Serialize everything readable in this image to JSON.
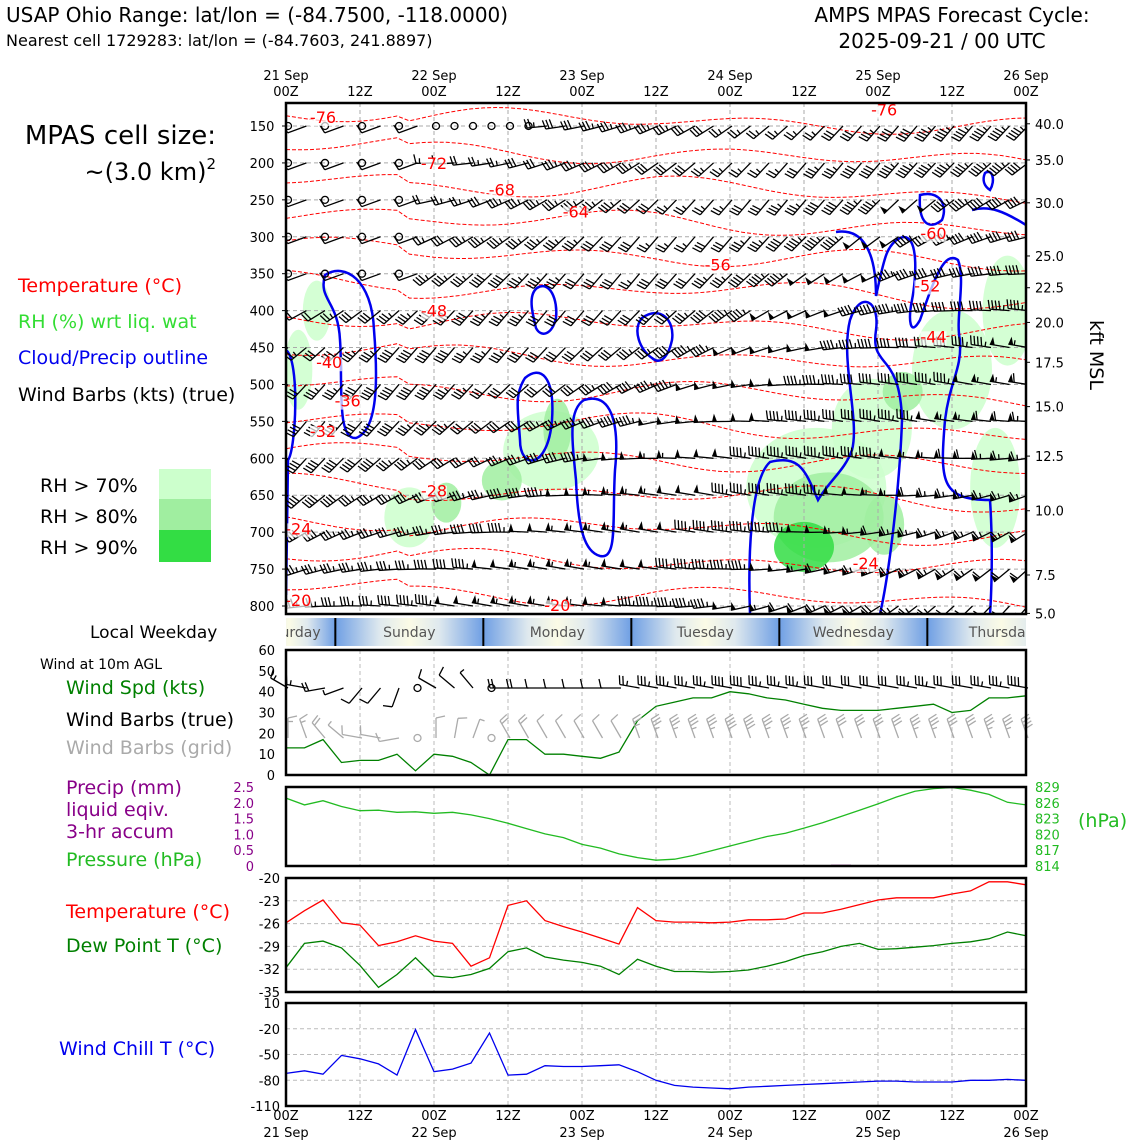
{
  "header": {
    "title_left": "USAP Ohio Range: lat/lon = (-84.7500, -118.0000)",
    "subtitle_left": "Nearest cell 1729283: lat/lon = (-84.7603, 241.8897)",
    "title_right_1": "AMPS MPAS Forecast Cycle:",
    "title_right_2": "2025-09-21 / 00 UTC"
  },
  "labels": {
    "cell_size_1": "MPAS cell size:",
    "cell_size_2": "~(3.0 km)",
    "cell_size_sup": "2",
    "temperature": "Temperature (°C)",
    "rh": "RH (%) wrt liq. wat",
    "cloud": "Cloud/Precip outline",
    "wind_barbs": "Wind Barbs (kts) (true)",
    "rh70": "RH > 70%",
    "rh80": "RH > 80%",
    "rh90": "RH > 90%",
    "kft_axis": "kft MSL",
    "local_weekday": "Local Weekday",
    "wind_10m": "Wind at 10m AGL",
    "wind_spd": "Wind Spd (kts)",
    "wind_barbs_true": "Wind Barbs (true)",
    "wind_barbs_grid": "Wind Barbs (grid)",
    "precip_1": "Precip (mm)",
    "precip_2": "liquid eqiv.",
    "precip_3": "3-hr accum",
    "pressure": "Pressure (hPa)",
    "hpa_right": "(hPa)",
    "temp2": "Temperature (°C)",
    "dewpoint": "Dew Point T (°C)",
    "windchill": "Wind Chill T (°C)"
  },
  "colors": {
    "temperature": "#ff0000",
    "rh": "#33dd33",
    "cloud": "#0000ee",
    "barbs": "#000000",
    "barbs_grid": "#aaaaaa",
    "precip": "#880088",
    "pressure": "#22bb22",
    "wind_speed": "#008000",
    "dewpoint": "#008000",
    "windchill": "#0000ee",
    "rh70": "#ccffcc",
    "rh80": "#a0eea0",
    "rh90": "#33dd44"
  },
  "time_axis": {
    "top_labels": [
      {
        "hour": 0,
        "l1": "21 Sep",
        "l2": "00Z"
      },
      {
        "hour": 12,
        "l1": "",
        "l2": "12Z"
      },
      {
        "hour": 24,
        "l1": "22 Sep",
        "l2": "00Z"
      },
      {
        "hour": 36,
        "l1": "",
        "l2": "12Z"
      },
      {
        "hour": 48,
        "l1": "23 Sep",
        "l2": "00Z"
      },
      {
        "hour": 60,
        "l1": "",
        "l2": "12Z"
      },
      {
        "hour": 72,
        "l1": "24 Sep",
        "l2": "00Z"
      },
      {
        "hour": 84,
        "l1": "",
        "l2": "12Z"
      },
      {
        "hour": 96,
        "l1": "25 Sep",
        "l2": "00Z"
      },
      {
        "hour": 108,
        "l1": "",
        "l2": "12Z"
      },
      {
        "hour": 120,
        "l1": "26 Sep",
        "l2": "00Z"
      }
    ],
    "bottom_labels": [
      {
        "hour": 0,
        "l1": "00Z",
        "l2": "21 Sep"
      },
      {
        "hour": 12,
        "l1": "12Z",
        "l2": ""
      },
      {
        "hour": 24,
        "l1": "00Z",
        "l2": "22 Sep"
      },
      {
        "hour": 36,
        "l1": "12Z",
        "l2": ""
      },
      {
        "hour": 48,
        "l1": "00Z",
        "l2": "23 Sep"
      },
      {
        "hour": 60,
        "l1": "12Z",
        "l2": ""
      },
      {
        "hour": 72,
        "l1": "00Z",
        "l2": "24 Sep"
      },
      {
        "hour": 84,
        "l1": "12Z",
        "l2": ""
      },
      {
        "hour": 96,
        "l1": "00Z",
        "l2": "25 Sep"
      },
      {
        "hour": 108,
        "l1": "12Z",
        "l2": ""
      },
      {
        "hour": 120,
        "l1": "00Z",
        "l2": "26 Sep"
      }
    ]
  },
  "weekdays": [
    {
      "name": "Saturday",
      "start": -7,
      "end": 8
    },
    {
      "name": "Sunday",
      "start": 8,
      "end": 32
    },
    {
      "name": "Monday",
      "start": 32,
      "end": 56
    },
    {
      "name": "Tuesday",
      "start": 56,
      "end": 80
    },
    {
      "name": "Wednesday",
      "start": 80,
      "end": 104
    },
    {
      "name": "Thursday",
      "start": 104,
      "end": 128
    }
  ],
  "chart_data": [
    {
      "type": "heatmap",
      "panel": "cross-section",
      "x_unit": "forecast hour",
      "x_range": [
        0,
        120
      ],
      "y_range_hpa": [
        810,
        130
      ],
      "pressure_ticks": [
        150,
        200,
        250,
        300,
        350,
        400,
        450,
        500,
        550,
        600,
        650,
        700,
        750,
        800
      ],
      "height_ticks_kft": [
        {
          "p": 147,
          "label": "40.0"
        },
        {
          "p": 196,
          "label": "35.0"
        },
        {
          "p": 254,
          "label": "30.0"
        },
        {
          "p": 326,
          "label": "25.0"
        },
        {
          "p": 369,
          "label": "22.5"
        },
        {
          "p": 416,
          "label": "20.0"
        },
        {
          "p": 470,
          "label": "17.5"
        },
        {
          "p": 530,
          "label": "15.0"
        },
        {
          "p": 597,
          "label": "12.5"
        },
        {
          "p": 671,
          "label": "10.0"
        },
        {
          "p": 758,
          "label": "7.5"
        },
        {
          "p": 857,
          "label": "5.0"
        }
      ],
      "temperature_labels": [
        {
          "value": "-76",
          "h": 6,
          "p": 146
        },
        {
          "value": "-76",
          "h": 97,
          "p": 136
        },
        {
          "value": "-72",
          "h": 24,
          "p": 208
        },
        {
          "value": "-68",
          "h": 35,
          "p": 244
        },
        {
          "value": "-64",
          "h": 47,
          "p": 274
        },
        {
          "value": "-60",
          "h": 105,
          "p": 303
        },
        {
          "value": "-56",
          "h": 70,
          "p": 346
        },
        {
          "value": "-52",
          "h": 104,
          "p": 374
        },
        {
          "value": "-48",
          "h": 24,
          "p": 408
        },
        {
          "value": "-44",
          "h": 105,
          "p": 443
        },
        {
          "value": "-40",
          "h": 7,
          "p": 478
        },
        {
          "value": "-36",
          "h": 10,
          "p": 530
        },
        {
          "value": "-32",
          "h": 6,
          "p": 571
        },
        {
          "value": "-28",
          "h": 24,
          "p": 652
        },
        {
          "value": "-24",
          "h": 2,
          "p": 703
        },
        {
          "value": "-24",
          "h": 94,
          "p": 750
        },
        {
          "value": "-20",
          "h": 2,
          "p": 800
        },
        {
          "value": "-20",
          "h": 44,
          "p": 807
        }
      ],
      "temperature_isotherms_c": [
        -76,
        -72,
        -68,
        -64,
        -60,
        -56,
        -52,
        -48,
        -44,
        -40,
        -36,
        -32,
        -28,
        -24,
        -20
      ]
    },
    {
      "type": "line",
      "panel": "wind-speed",
      "ylim": [
        0,
        60
      ],
      "yticks": [
        0,
        10,
        20,
        30,
        40,
        50,
        60
      ],
      "x": [
        0,
        3,
        6,
        9,
        12,
        15,
        18,
        21,
        24,
        27,
        30,
        33,
        36,
        39,
        42,
        45,
        48,
        51,
        54,
        57,
        60,
        63,
        66,
        69,
        72,
        75,
        78,
        81,
        84,
        87,
        90,
        93,
        96,
        99,
        102,
        105,
        108,
        111,
        114,
        117,
        120
      ],
      "series": [
        {
          "name": "Wind Spd (kts)",
          "values": [
            13,
            13,
            17,
            6,
            7,
            7,
            10,
            2,
            10,
            9,
            6,
            0,
            17,
            17,
            10,
            10,
            9,
            8,
            11,
            26,
            33,
            35,
            37,
            37,
            40,
            39,
            37,
            36,
            34,
            32,
            31,
            31,
            31,
            32,
            33,
            34,
            30,
            31,
            37,
            37,
            38
          ]
        }
      ],
      "barbs_true_speed_kts": [
        15,
        15,
        18,
        6,
        8,
        8,
        10,
        0,
        12,
        10,
        7,
        0,
        18,
        18,
        12,
        12,
        10,
        10,
        12,
        27,
        33,
        35,
        37,
        37,
        40,
        39,
        37,
        36,
        34,
        32,
        31,
        31,
        31,
        32,
        33,
        34,
        30,
        31,
        37,
        37,
        38
      ],
      "barbs_true_dir_deg": [
        300,
        280,
        260,
        250,
        220,
        220,
        200,
        0,
        300,
        310,
        320,
        0,
        270,
        270,
        270,
        270,
        270,
        270,
        270,
        280,
        280,
        280,
        280,
        280,
        280,
        280,
        280,
        280,
        280,
        280,
        280,
        280,
        280,
        280,
        280,
        280,
        280,
        280,
        280,
        280,
        280
      ]
    },
    {
      "type": "line",
      "panel": "precip-pressure",
      "precip_ylim": [
        0,
        2.5
      ],
      "precip_yticks": [
        "0",
        "0.5",
        "1.0",
        "1.5",
        "2.0",
        "2.5"
      ],
      "pressure_ylim": [
        814,
        829
      ],
      "pressure_yticks": [
        814,
        817,
        820,
        823,
        826,
        829
      ],
      "x": [
        0,
        3,
        6,
        9,
        12,
        15,
        18,
        21,
        24,
        27,
        30,
        33,
        36,
        39,
        42,
        45,
        48,
        51,
        54,
        57,
        60,
        63,
        66,
        69,
        72,
        75,
        78,
        81,
        84,
        87,
        90,
        93,
        96,
        99,
        102,
        105,
        108,
        111,
        114,
        117,
        120
      ],
      "series": [
        {
          "name": "Pressure (hPa)",
          "values": [
            826.9,
            825.6,
            826.4,
            825.3,
            824.5,
            824.6,
            824.2,
            824.3,
            824.0,
            824.2,
            823.7,
            823.0,
            822.1,
            821.1,
            820.1,
            819.4,
            818.1,
            817.4,
            816.3,
            815.6,
            815.1,
            815.3,
            816.0,
            816.9,
            817.8,
            818.7,
            819.6,
            820.2,
            821.2,
            822.2,
            823.4,
            824.6,
            825.8,
            827.1,
            828.2,
            828.7,
            828.9,
            828.4,
            827.6,
            826.1,
            825.6
          ]
        },
        {
          "name": "Precip (mm)",
          "values": [
            0,
            0,
            0,
            0,
            0,
            0,
            0,
            0,
            0,
            0,
            0,
            0,
            0,
            0,
            0,
            0,
            0,
            0,
            0,
            0,
            0,
            0,
            0,
            0,
            0,
            0,
            0,
            0,
            0,
            0,
            0.02,
            0,
            0,
            0,
            0,
            0,
            0,
            0,
            0,
            0,
            0
          ]
        }
      ]
    },
    {
      "type": "line",
      "panel": "temperature-dewpoint",
      "ylim": [
        -35,
        -20
      ],
      "yticks": [
        -35,
        -32,
        -29,
        -26,
        -23,
        -20
      ],
      "x": [
        0,
        3,
        6,
        9,
        12,
        15,
        18,
        21,
        24,
        27,
        30,
        33,
        36,
        39,
        42,
        45,
        48,
        51,
        54,
        57,
        60,
        63,
        66,
        69,
        72,
        75,
        78,
        81,
        84,
        87,
        90,
        93,
        96,
        99,
        102,
        105,
        108,
        111,
        114,
        117,
        120
      ],
      "series": [
        {
          "name": "Temperature (°C)",
          "values": [
            -25.9,
            -24.3,
            -22.9,
            -25.9,
            -26.2,
            -28.9,
            -28.4,
            -27.6,
            -28.3,
            -28.6,
            -31.6,
            -30.5,
            -23.6,
            -23.0,
            -25.6,
            -26.4,
            -27.1,
            -27.9,
            -28.7,
            -23.9,
            -25.6,
            -25.8,
            -25.8,
            -25.9,
            -25.8,
            -25.5,
            -25.5,
            -25.4,
            -24.6,
            -24.6,
            -24.1,
            -23.5,
            -22.9,
            -22.6,
            -22.6,
            -22.6,
            -22.1,
            -21.7,
            -20.5,
            -20.5,
            -20.9
          ]
        },
        {
          "name": "Dew Point T (°C)",
          "values": [
            -31.8,
            -28.6,
            -28.3,
            -29.2,
            -31.5,
            -34.4,
            -32.7,
            -30.5,
            -32.9,
            -33.1,
            -32.7,
            -31.9,
            -29.7,
            -29.2,
            -30.4,
            -30.8,
            -31.1,
            -31.6,
            -32.7,
            -30.7,
            -31.6,
            -32.3,
            -32.3,
            -32.4,
            -32.3,
            -32.1,
            -31.6,
            -31.0,
            -30.2,
            -29.7,
            -29.0,
            -28.6,
            -29.4,
            -29.3,
            -29.1,
            -28.9,
            -28.6,
            -28.4,
            -28.0,
            -27.1,
            -27.6
          ]
        }
      ]
    },
    {
      "type": "line",
      "panel": "wind-chill",
      "ylim": [
        -110,
        10
      ],
      "yticks": [
        -110,
        -80,
        -50,
        -20,
        10
      ],
      "x": [
        0,
        3,
        6,
        9,
        12,
        15,
        18,
        21,
        24,
        27,
        30,
        33,
        36,
        39,
        42,
        45,
        48,
        51,
        54,
        57,
        60,
        63,
        66,
        69,
        72,
        75,
        78,
        81,
        84,
        87,
        90,
        93,
        96,
        99,
        102,
        105,
        108,
        111,
        114,
        117,
        120
      ],
      "series": [
        {
          "name": "Wind Chill T (°C)",
          "values": [
            -72,
            -69,
            -73,
            -51,
            -55,
            -61,
            -74,
            -21,
            -70,
            -67,
            -60,
            -25,
            -74,
            -73,
            -63,
            -64,
            -64,
            -63,
            -62,
            -70,
            -80,
            -86,
            -88,
            -89,
            -90,
            -88,
            -87,
            -86,
            -85,
            -84,
            -83,
            -82,
            -81,
            -81,
            -82,
            -82,
            -82,
            -80,
            -80,
            -79,
            -80
          ]
        }
      ]
    }
  ]
}
